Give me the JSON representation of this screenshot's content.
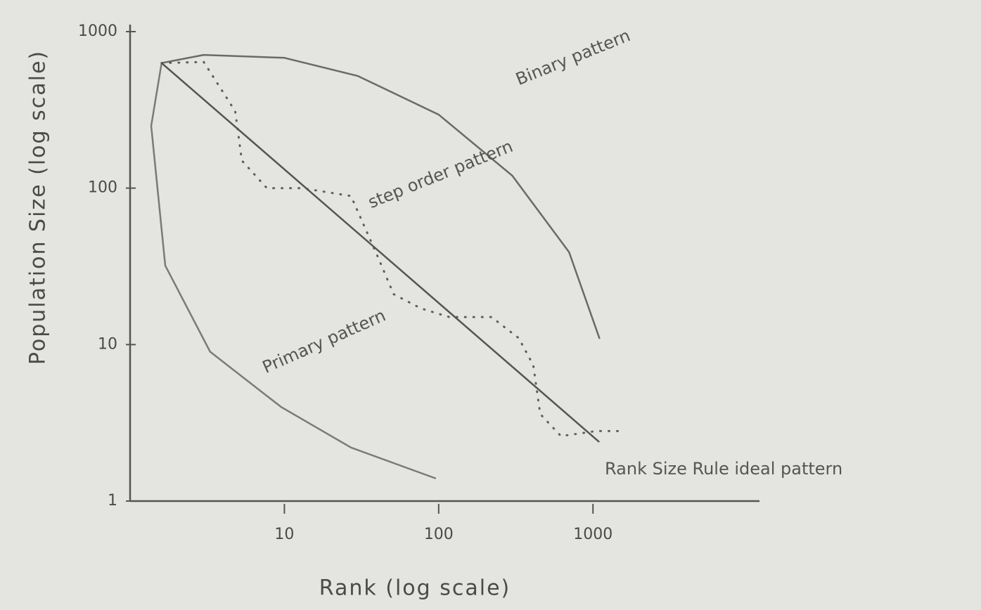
{
  "chart_data": {
    "type": "line",
    "xlabel": "Rank (log scale)",
    "ylabel": "Population Size (log scale)",
    "xscale": "log",
    "yscale": "log",
    "grid": false,
    "xlim": [
      1,
      12000
    ],
    "ylim": [
      1,
      1000
    ],
    "xticks": [
      10,
      100,
      1000
    ],
    "yticks": [
      1,
      10,
      100,
      1000
    ],
    "series": [
      {
        "name": "Binary pattern",
        "color": "#6a6a6a",
        "style": "solid",
        "x": [
          1.6,
          3,
          10,
          30,
          100,
          300,
          700,
          1100
        ],
        "values": [
          630,
          710,
          680,
          520,
          295,
          120,
          39,
          11
        ]
      },
      {
        "name": "step order pattern",
        "color": "#5e5e5e",
        "style": "dotted",
        "x": [
          1.6,
          3,
          4.8,
          5.3,
          7.7,
          13,
          27,
          41,
          51,
          77,
          117,
          220,
          330,
          410,
          455,
          620,
          1050,
          1600
        ],
        "values": [
          630,
          640,
          310,
          150,
          100,
          100,
          89,
          35,
          21,
          17,
          15,
          15,
          11,
          7.4,
          3.6,
          2.6,
          2.8,
          2.8
        ]
      },
      {
        "name": "Primary pattern",
        "color": "#7a7a7a",
        "style": "solid",
        "x": [
          1.6,
          1.37,
          1.69,
          3.3,
          9.5,
          27,
          95
        ],
        "values": [
          630,
          250,
          32,
          9,
          4,
          2.2,
          1.4
        ]
      },
      {
        "name": "Rank Size Rule ideal pattern",
        "color": "#555555",
        "style": "solid",
        "x": [
          1.6,
          1090
        ],
        "values": [
          630,
          2.4
        ]
      }
    ]
  }
}
